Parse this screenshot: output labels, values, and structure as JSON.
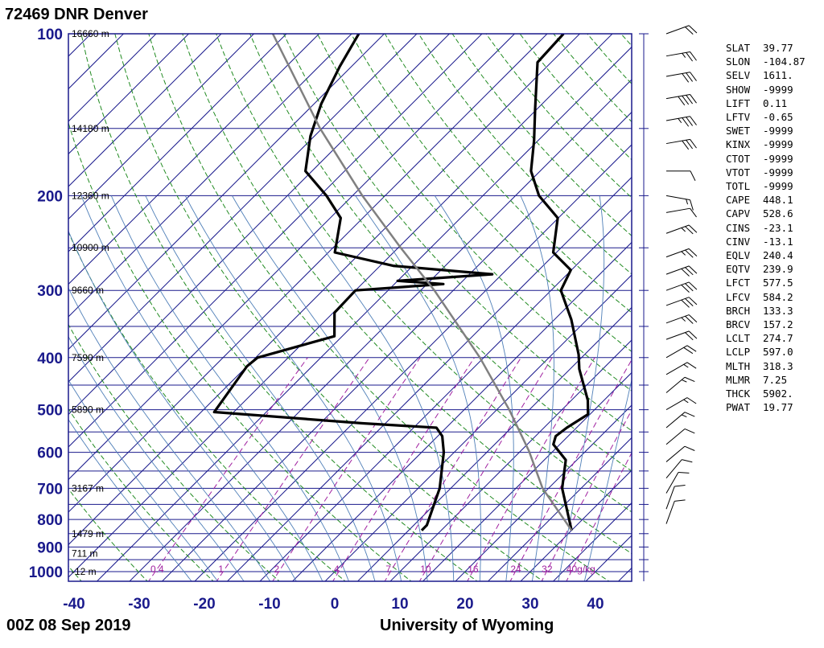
{
  "header": {
    "station": "72469 DNR Denver"
  },
  "footer": {
    "time": "00Z 08 Sep 2019",
    "source": "University of Wyoming"
  },
  "chart_data": {
    "type": "line",
    "title": "72469 DNR Denver",
    "subtitle": "00Z 08 Sep 2019",
    "xlabel": "",
    "ylabel": "",
    "x_scale": "skew-T temperature (°C)",
    "y_scale": "log pressure (hPa)",
    "xlim": [
      -40,
      45
    ],
    "ylim": [
      1050,
      100
    ],
    "temperature_ticks": [
      -40,
      -30,
      -20,
      -10,
      0,
      10,
      20,
      30,
      40
    ],
    "pressure_ticks": [
      100,
      200,
      300,
      400,
      500,
      600,
      700,
      800,
      900,
      1000
    ],
    "height_labels": [
      {
        "p": 100,
        "text": "16660 m"
      },
      {
        "p": 150,
        "text": "14180 m"
      },
      {
        "p": 200,
        "text": "12360 m"
      },
      {
        "p": 250,
        "text": "10900 m"
      },
      {
        "p": 300,
        "text": "9660 m"
      },
      {
        "p": 400,
        "text": "7590 m"
      },
      {
        "p": 500,
        "text": "5890 m"
      },
      {
        "p": 700,
        "text": "3167 m"
      },
      {
        "p": 850,
        "text": "1479 m"
      },
      {
        "p": 925,
        "text": "711 m"
      },
      {
        "p": 1000,
        "text": "-12 m"
      }
    ],
    "mixing_ratio_labels": [
      "0.4",
      "1",
      "2",
      "4",
      "7",
      "10",
      "16",
      "24",
      "32",
      "40g/kg"
    ],
    "series": [
      {
        "name": "Temperature",
        "color": "#000000",
        "points": [
          {
            "p": 838,
            "t": 30.0
          },
          {
            "p": 700,
            "t": 22.1
          },
          {
            "p": 620,
            "t": 18.3
          },
          {
            "p": 580,
            "t": 14.0
          },
          {
            "p": 560,
            "t": 13.1
          },
          {
            "p": 540,
            "t": 13.5
          },
          {
            "p": 510,
            "t": 14.7
          },
          {
            "p": 480,
            "t": 12.5
          },
          {
            "p": 420,
            "t": 6.4
          },
          {
            "p": 395,
            "t": 4.1
          },
          {
            "p": 340,
            "t": -2.4
          },
          {
            "p": 300,
            "t": -8.5
          },
          {
            "p": 275,
            "t": -10.1
          },
          {
            "p": 255,
            "t": -15.5
          },
          {
            "p": 220,
            "t": -20.1
          },
          {
            "p": 200,
            "t": -26.4
          },
          {
            "p": 180,
            "t": -31.4
          },
          {
            "p": 158,
            "t": -35.6
          },
          {
            "p": 138,
            "t": -40.3
          },
          {
            "p": 113,
            "t": -47.1
          },
          {
            "p": 100,
            "t": -47.5
          }
        ]
      },
      {
        "name": "Dew point",
        "color": "#000000",
        "points": [
          {
            "p": 838,
            "t": 7.0
          },
          {
            "p": 820,
            "t": 7.0
          },
          {
            "p": 700,
            "t": 3.3
          },
          {
            "p": 600,
            "t": -1.6
          },
          {
            "p": 560,
            "t": -4.3
          },
          {
            "p": 540,
            "t": -6.5
          },
          {
            "p": 530,
            "t": -18.5
          },
          {
            "p": 505,
            "t": -43.0
          },
          {
            "p": 415,
            "t": -45.0
          },
          {
            "p": 400,
            "t": -44.7
          },
          {
            "p": 365,
            "t": -36.2
          },
          {
            "p": 330,
            "t": -39.8
          },
          {
            "p": 300,
            "t": -40.0
          },
          {
            "p": 292,
            "t": -27.5
          },
          {
            "p": 288,
            "t": -35.0
          },
          {
            "p": 280,
            "t": -21.5
          },
          {
            "p": 270,
            "t": -38.0
          },
          {
            "p": 255,
            "t": -49.0
          },
          {
            "p": 220,
            "t": -53.4
          },
          {
            "p": 200,
            "t": -59.0
          },
          {
            "p": 180,
            "t": -66.0
          },
          {
            "p": 155,
            "t": -70.6
          },
          {
            "p": 135,
            "t": -73.9
          },
          {
            "p": 115,
            "t": -76.8
          },
          {
            "p": 100,
            "t": -78.9
          }
        ]
      },
      {
        "name": "Parcel",
        "color": "#808080",
        "points": [
          {
            "p": 838,
            "t": 30.0
          },
          {
            "p": 700,
            "t": 19.1
          },
          {
            "p": 597,
            "t": 11.3
          },
          {
            "p": 500,
            "t": 1.9
          },
          {
            "p": 400,
            "t": -10.6
          },
          {
            "p": 300,
            "t": -27.9
          },
          {
            "p": 250,
            "t": -39.6
          },
          {
            "p": 200,
            "t": -53.5
          },
          {
            "p": 150,
            "t": -70.3
          },
          {
            "p": 100,
            "t": -92.1
          }
        ]
      }
    ],
    "wind_barbs": [
      {
        "p": 100,
        "dir": 250,
        "kt": 20
      },
      {
        "p": 110,
        "dir": 260,
        "kt": 25
      },
      {
        "p": 120,
        "dir": 260,
        "kt": 30
      },
      {
        "p": 132,
        "dir": 260,
        "kt": 40
      },
      {
        "p": 145,
        "dir": 260,
        "kt": 35
      },
      {
        "p": 160,
        "dir": 260,
        "kt": 30
      },
      {
        "p": 180,
        "dir": 270,
        "kt": 10
      },
      {
        "p": 200,
        "dir": 280,
        "kt": 15
      },
      {
        "p": 215,
        "dir": 260,
        "kt": 10
      },
      {
        "p": 235,
        "dir": 250,
        "kt": 25
      },
      {
        "p": 260,
        "dir": 250,
        "kt": 25
      },
      {
        "p": 280,
        "dir": 250,
        "kt": 30
      },
      {
        "p": 300,
        "dir": 250,
        "kt": 30
      },
      {
        "p": 320,
        "dir": 250,
        "kt": 30
      },
      {
        "p": 345,
        "dir": 250,
        "kt": 25
      },
      {
        "p": 370,
        "dir": 250,
        "kt": 20
      },
      {
        "p": 400,
        "dir": 240,
        "kt": 20
      },
      {
        "p": 430,
        "dir": 240,
        "kt": 15
      },
      {
        "p": 465,
        "dir": 230,
        "kt": 15
      },
      {
        "p": 500,
        "dir": 240,
        "kt": 15
      },
      {
        "p": 540,
        "dir": 230,
        "kt": 15
      },
      {
        "p": 580,
        "dir": 230,
        "kt": 10
      },
      {
        "p": 625,
        "dir": 230,
        "kt": 10
      },
      {
        "p": 670,
        "dir": 220,
        "kt": 10
      },
      {
        "p": 715,
        "dir": 210,
        "kt": 10
      },
      {
        "p": 765,
        "dir": 200,
        "kt": 10
      },
      {
        "p": 815,
        "dir": 200,
        "kt": 10
      }
    ],
    "colors": {
      "isobars": "#1a1a8c",
      "isotherms": "#1a1a8c",
      "dry_adiabats": "#228b22",
      "moist_adiabats": "#4f7fb8",
      "mixing_ratio": "#a020a0",
      "axis_labels": "#1a1a8c"
    }
  },
  "indices": [
    {
      "name": "SLAT",
      "value": "39.77"
    },
    {
      "name": "SLON",
      "value": "-104.87"
    },
    {
      "name": "SELV",
      "value": "1611."
    },
    {
      "name": "SHOW",
      "value": "-9999"
    },
    {
      "name": "LIFT",
      "value": "0.11"
    },
    {
      "name": "LFTV",
      "value": "-0.65"
    },
    {
      "name": "SWET",
      "value": "-9999"
    },
    {
      "name": "KINX",
      "value": "-9999"
    },
    {
      "name": "CTOT",
      "value": "-9999"
    },
    {
      "name": "VTOT",
      "value": "-9999"
    },
    {
      "name": "TOTL",
      "value": "-9999"
    },
    {
      "name": "CAPE",
      "value": "448.1"
    },
    {
      "name": "CAPV",
      "value": "528.6"
    },
    {
      "name": "CINS",
      "value": "-23.1"
    },
    {
      "name": "CINV",
      "value": "-13.1"
    },
    {
      "name": "EQLV",
      "value": "240.4"
    },
    {
      "name": "EQTV",
      "value": "239.9"
    },
    {
      "name": "LFCT",
      "value": "577.5"
    },
    {
      "name": "LFCV",
      "value": "584.2"
    },
    {
      "name": "BRCH",
      "value": "133.3"
    },
    {
      "name": "BRCV",
      "value": "157.2"
    },
    {
      "name": "LCLT",
      "value": "274.7"
    },
    {
      "name": "LCLP",
      "value": "597.0"
    },
    {
      "name": "MLTH",
      "value": "318.3"
    },
    {
      "name": "MLMR",
      "value": "7.25"
    },
    {
      "name": "THCK",
      "value": "5902."
    },
    {
      "name": "PWAT",
      "value": "19.77"
    }
  ]
}
